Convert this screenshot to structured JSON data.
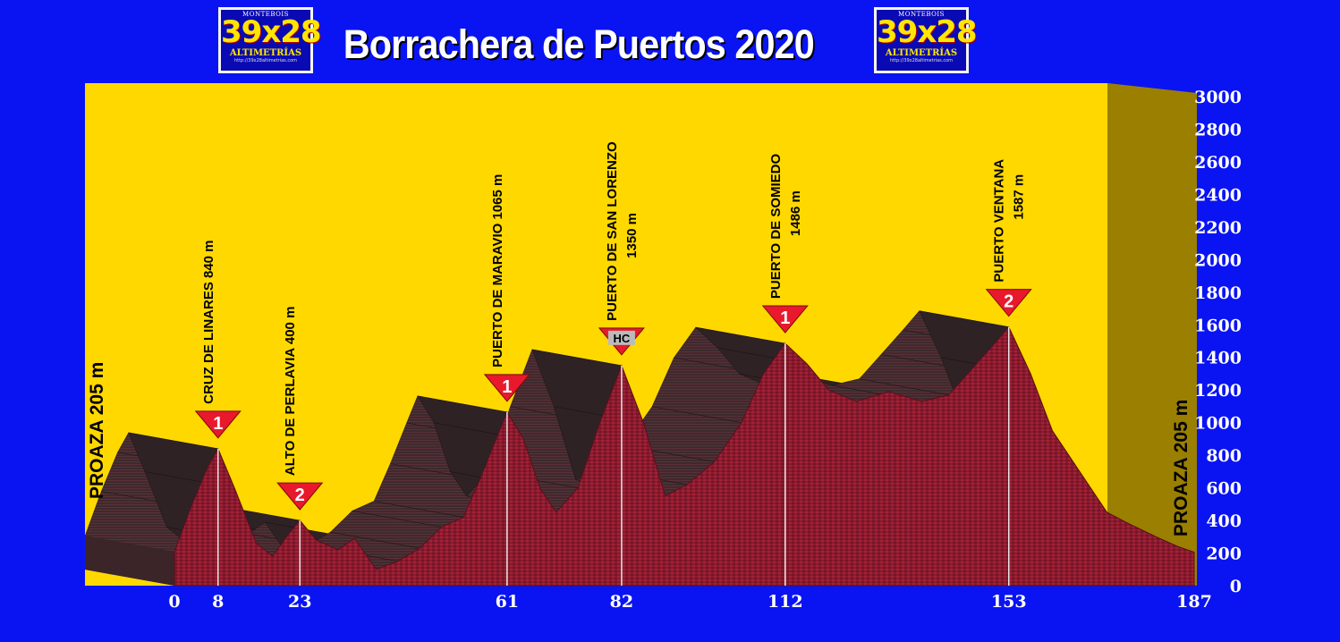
{
  "title": "Borrachera de Puertos 2020",
  "logo": {
    "top": "MONTEBOIS",
    "big": "39x28",
    "sub": "ALTIMETRÍAS",
    "url": "http://39x28altimetrias.com"
  },
  "chart_data": {
    "type": "area",
    "title": "Borrachera de Puertos 2020",
    "xlabel": "",
    "ylabel": "",
    "xlim": [
      0,
      187
    ],
    "ylim": [
      0,
      3000
    ],
    "y_ticks": [
      0,
      200,
      400,
      600,
      800,
      1000,
      1200,
      1400,
      1600,
      1800,
      2000,
      2200,
      2400,
      2600,
      2800,
      3000
    ],
    "x_ticks": [
      0,
      8,
      23,
      61,
      82,
      112,
      153,
      187
    ],
    "x_tick_labels": [
      "0",
      "8",
      "23",
      "61",
      "82",
      "112",
      "153",
      "187"
    ],
    "grid": false,
    "legend": "none",
    "colors": {
      "background": "#0a14f2",
      "panel": "#ffd800",
      "profile": "#8a1a2c",
      "side_wall": "#3a2a2c",
      "marker": "#e8192c",
      "hc_marker": "#bbbbbb"
    },
    "profile": [
      {
        "x": 0,
        "y": 205
      },
      {
        "x": 3,
        "y": 480
      },
      {
        "x": 6,
        "y": 720
      },
      {
        "x": 8,
        "y": 840
      },
      {
        "x": 11,
        "y": 600
      },
      {
        "x": 15,
        "y": 260
      },
      {
        "x": 18,
        "y": 180
      },
      {
        "x": 21,
        "y": 320
      },
      {
        "x": 23,
        "y": 400
      },
      {
        "x": 26,
        "y": 280
      },
      {
        "x": 30,
        "y": 220
      },
      {
        "x": 33,
        "y": 290
      },
      {
        "x": 37,
        "y": 100
      },
      {
        "x": 41,
        "y": 150
      },
      {
        "x": 45,
        "y": 230
      },
      {
        "x": 49,
        "y": 360
      },
      {
        "x": 53,
        "y": 420
      },
      {
        "x": 56,
        "y": 650
      },
      {
        "x": 59,
        "y": 900
      },
      {
        "x": 61,
        "y": 1065
      },
      {
        "x": 64,
        "y": 900
      },
      {
        "x": 67,
        "y": 600
      },
      {
        "x": 70,
        "y": 450
      },
      {
        "x": 74,
        "y": 600
      },
      {
        "x": 78,
        "y": 1000
      },
      {
        "x": 82,
        "y": 1350
      },
      {
        "x": 86,
        "y": 1000
      },
      {
        "x": 90,
        "y": 550
      },
      {
        "x": 94,
        "y": 620
      },
      {
        "x": 99,
        "y": 760
      },
      {
        "x": 104,
        "y": 1000
      },
      {
        "x": 108,
        "y": 1300
      },
      {
        "x": 112,
        "y": 1486
      },
      {
        "x": 116,
        "y": 1360
      },
      {
        "x": 120,
        "y": 1200
      },
      {
        "x": 125,
        "y": 1130
      },
      {
        "x": 131,
        "y": 1190
      },
      {
        "x": 137,
        "y": 1130
      },
      {
        "x": 142,
        "y": 1170
      },
      {
        "x": 146,
        "y": 1320
      },
      {
        "x": 150,
        "y": 1470
      },
      {
        "x": 153,
        "y": 1587
      },
      {
        "x": 157,
        "y": 1300
      },
      {
        "x": 161,
        "y": 950
      },
      {
        "x": 166,
        "y": 700
      },
      {
        "x": 171,
        "y": 450
      },
      {
        "x": 175,
        "y": 380
      },
      {
        "x": 180,
        "y": 300
      },
      {
        "x": 184,
        "y": 240
      },
      {
        "x": 187,
        "y": 205
      }
    ],
    "start_label": "PROAZA 205 m",
    "end_label": "PROAZA 205 m",
    "climbs": [
      {
        "name": "CRUZ DE LINARES 840 m",
        "km": 8,
        "alt": 840,
        "category": "1"
      },
      {
        "name": "ALTO DE PERLAVIA 400 m",
        "km": 23,
        "alt": 400,
        "category": "2"
      },
      {
        "name": "PUERTO DE MARAVIO 1065 m",
        "km": 61,
        "alt": 1065,
        "category": "1"
      },
      {
        "name": "PUERTO DE SAN LORENZO",
        "name2": "1350 m",
        "km": 82,
        "alt": 1350,
        "category": "HC"
      },
      {
        "name": "PUERTO DE SOMIEDO",
        "name2": "1486 m",
        "km": 112,
        "alt": 1486,
        "category": "1"
      },
      {
        "name": "PUERTO VENTANA",
        "name2": "1587 m",
        "km": 153,
        "alt": 1587,
        "category": "2"
      }
    ]
  }
}
